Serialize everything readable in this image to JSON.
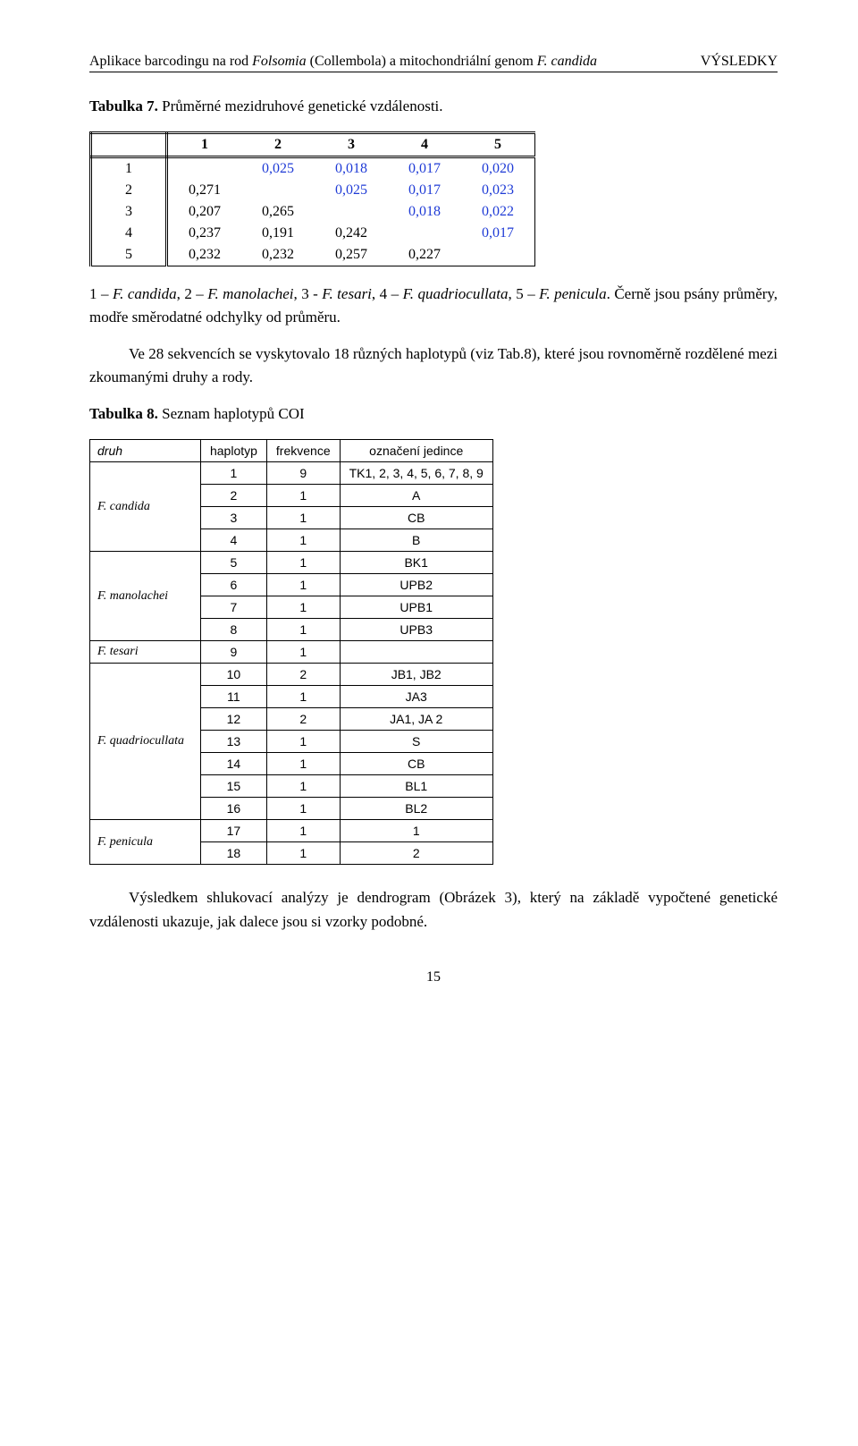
{
  "header": {
    "left_prefix": "Aplikace barcodingu na rod ",
    "left_italic1": "Folsomia",
    "left_mid": " (Collembola) a mitochondriální genom ",
    "left_italic2": "F. candida",
    "right": "VÝSLEDKY"
  },
  "t7": {
    "title_prefix": "Tabulka 7.",
    "title_rest": " Průměrné mezidruhové genetické vzdálenosti.",
    "col_headers": [
      "1",
      "2",
      "3",
      "4",
      "5"
    ],
    "row_headers": [
      "1",
      "2",
      "3",
      "4",
      "5"
    ],
    "cells": [
      [
        "",
        "0,025",
        "0,018",
        "0,017",
        "0,020"
      ],
      [
        "0,271",
        "",
        "0,025",
        "0,017",
        "0,023"
      ],
      [
        "0,207",
        "0,265",
        "",
        "0,018",
        "0,022"
      ],
      [
        "0,237",
        "0,191",
        "0,242",
        "",
        "0,017"
      ],
      [
        "0,232",
        "0,232",
        "0,257",
        "0,227",
        ""
      ]
    ],
    "colors": [
      [
        "",
        "blue",
        "blue",
        "blue",
        "blue"
      ],
      [
        "black",
        "",
        "blue",
        "blue",
        "blue"
      ],
      [
        "black",
        "black",
        "",
        "blue",
        "blue"
      ],
      [
        "black",
        "black",
        "black",
        "",
        "blue"
      ],
      [
        "black",
        "black",
        "black",
        "black",
        ""
      ]
    ],
    "legend_plain1": "1 – ",
    "legend_it1": "F. candida",
    "legend_plain2": ", 2 – ",
    "legend_it2": "F. manolachei",
    "legend_plain3": ", 3 - ",
    "legend_it3": "F. tesari",
    "legend_plain4": ", 4 – ",
    "legend_it4": "F. quadriocullata",
    "legend_plain5": ", 5 – ",
    "legend_it5": "F. penicula",
    "legend_tail": ". Černě jsou psány průměry, modře směrodatné odchylky od průměru."
  },
  "para1_a": "Ve 28 sekvencích se vyskytovalo 18 různých haplotypů (viz Tab.8), které jsou rovnoměrně rozdělené mezi zkoumanými druhy a rody.",
  "t8": {
    "title_prefix": "Tabulka 8.",
    "title_rest": " Seznam haplotypů COI",
    "headers": [
      "druh",
      "haplotyp",
      "frekvence",
      "označení jedince"
    ],
    "groups": [
      {
        "name": "F. candida",
        "rows": [
          {
            "h": "1",
            "f": "9",
            "lab": "TK1, 2, 3, 4, 5, 6, 7, 8, 9"
          },
          {
            "h": "2",
            "f": "1",
            "lab": "A"
          },
          {
            "h": "3",
            "f": "1",
            "lab": "CB"
          },
          {
            "h": "4",
            "f": "1",
            "lab": "B"
          }
        ]
      },
      {
        "name": "F. manolachei",
        "rows": [
          {
            "h": "5",
            "f": "1",
            "lab": "BK1"
          },
          {
            "h": "6",
            "f": "1",
            "lab": "UPB2"
          },
          {
            "h": "7",
            "f": "1",
            "lab": "UPB1"
          },
          {
            "h": "8",
            "f": "1",
            "lab": "UPB3"
          }
        ]
      },
      {
        "name": "F. tesari",
        "rows": [
          {
            "h": "9",
            "f": "1",
            "lab": ""
          }
        ]
      },
      {
        "name": "F. quadriocullata",
        "rows": [
          {
            "h": "10",
            "f": "2",
            "lab": "JB1, JB2"
          },
          {
            "h": "11",
            "f": "1",
            "lab": "JA3"
          },
          {
            "h": "12",
            "f": "2",
            "lab": "JA1, JA 2"
          },
          {
            "h": "13",
            "f": "1",
            "lab": "S"
          },
          {
            "h": "14",
            "f": "1",
            "lab": "CB"
          },
          {
            "h": "15",
            "f": "1",
            "lab": "BL1"
          },
          {
            "h": "16",
            "f": "1",
            "lab": "BL2"
          }
        ]
      },
      {
        "name": "F. penicula",
        "rows": [
          {
            "h": "17",
            "f": "1",
            "lab": "1"
          },
          {
            "h": "18",
            "f": "1",
            "lab": "2"
          }
        ]
      }
    ]
  },
  "para2": "Výsledkem shlukovací analýzy je dendrogram (Obrázek 3), který na základě vypočtené genetické vzdálenosti ukazuje, jak dalece jsou si vzorky podobné.",
  "page_number": "15"
}
